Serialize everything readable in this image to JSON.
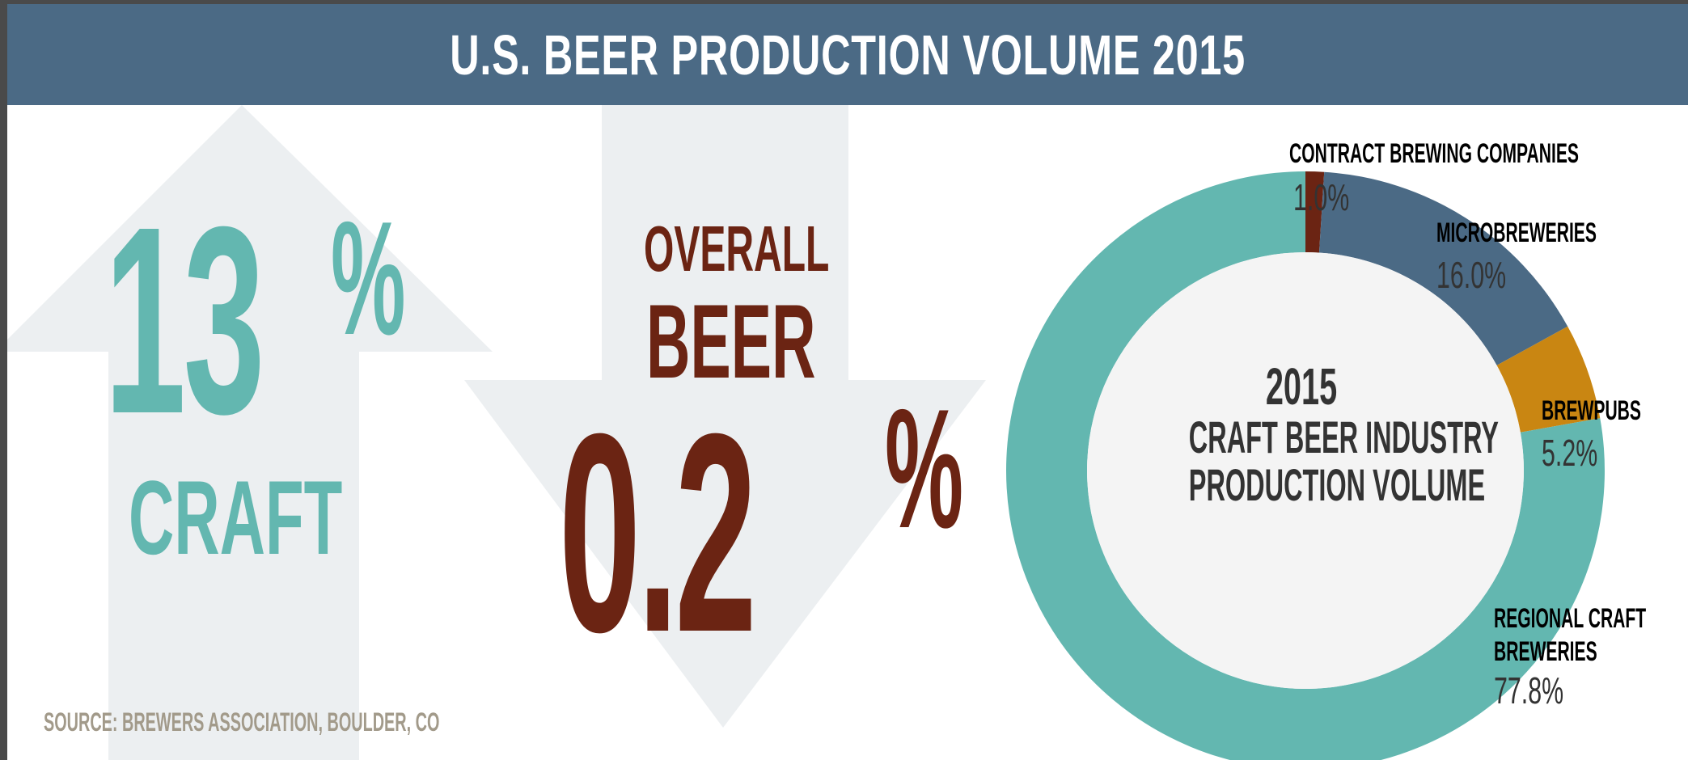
{
  "header": {
    "title": "U.S. BEER PRODUCTION VOLUME 2015"
  },
  "craft": {
    "value": "13",
    "percent_sign": "%",
    "label": "CRAFT",
    "color": "#63b7b0"
  },
  "overall": {
    "label_top": "OVERALL",
    "label_mid": "BEER",
    "value": "0.2",
    "percent_sign": "%",
    "color": "#6b2413"
  },
  "source": "SOURCE: BREWERS ASSOCIATION, BOULDER, CO",
  "icons": {
    "up_arrow": "up-arrow-icon",
    "down_arrow": "down-arrow-icon",
    "arrow_color": "#eceff1"
  },
  "chart_data": {
    "type": "pie",
    "center_title": {
      "year": "2015",
      "line1": "CRAFT BEER INDUSTRY",
      "line2": "PRODUCTION VOLUME"
    },
    "slices": [
      {
        "label": "CONTRACT BREWING COMPANIES",
        "value": 1.0,
        "display": "1.0%",
        "color": "#6b2413"
      },
      {
        "label": "MICROBREWERIES",
        "value": 16.0,
        "display": "16.0%",
        "color": "#4b6a85"
      },
      {
        "label": "BREWPUBS",
        "value": 5.2,
        "display": "5.2%",
        "color": "#c98612"
      },
      {
        "label": "REGIONAL CRAFT BREWERIES",
        "label_lines": [
          "REGIONAL CRAFT",
          "BREWERIES"
        ],
        "value": 77.8,
        "display": "77.8%",
        "color": "#63b7b0"
      }
    ]
  }
}
